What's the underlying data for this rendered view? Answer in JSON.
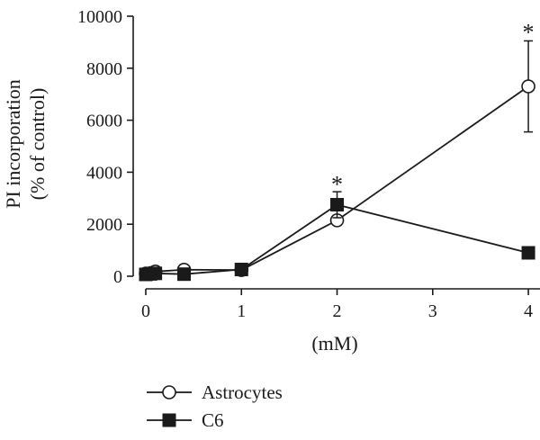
{
  "chart_data": {
    "type": "line",
    "title": "",
    "xlabel": "(mM)",
    "ylabel_lines": [
      "PI incorporation",
      "(% of control)"
    ],
    "xlim": [
      0,
      4.15
    ],
    "ylim": [
      0,
      10000
    ],
    "x_ticks": [
      0,
      1,
      2,
      3,
      4
    ],
    "y_ticks": [
      0,
      2000,
      4000,
      6000,
      8000,
      10000
    ],
    "grid": false,
    "legend_position": "bottom-left",
    "colors": {
      "line": "#1a1a1a",
      "marker_fill_astrocytes": "#ffffff",
      "marker_fill_c6": "#1a1a1a"
    },
    "series": [
      {
        "name": "Astrocytes",
        "marker": "open-circle",
        "points": [
          {
            "x": 0,
            "y": 100,
            "err": 0
          },
          {
            "x": 0.05,
            "y": 120,
            "err": 0
          },
          {
            "x": 0.1,
            "y": 180,
            "err": 0
          },
          {
            "x": 0.4,
            "y": 250,
            "err": 0
          },
          {
            "x": 1,
            "y": 240,
            "err": 0
          },
          {
            "x": 2,
            "y": 2150,
            "err": 0
          },
          {
            "x": 4,
            "y": 7300,
            "err": 1750
          }
        ]
      },
      {
        "name": "C6",
        "marker": "filled-square",
        "points": [
          {
            "x": 0,
            "y": 70,
            "err": 0
          },
          {
            "x": 0.05,
            "y": 90,
            "err": 0
          },
          {
            "x": 0.1,
            "y": 110,
            "err": 0
          },
          {
            "x": 0.4,
            "y": 80,
            "err": 0
          },
          {
            "x": 1,
            "y": 260,
            "err": 0
          },
          {
            "x": 2,
            "y": 2750,
            "err": 500
          },
          {
            "x": 4,
            "y": 900,
            "err": 0
          }
        ]
      }
    ],
    "annotations": [
      {
        "text": "*",
        "x": 2,
        "y": 3650
      },
      {
        "text": "*",
        "x": 4,
        "y": 9500
      }
    ]
  }
}
